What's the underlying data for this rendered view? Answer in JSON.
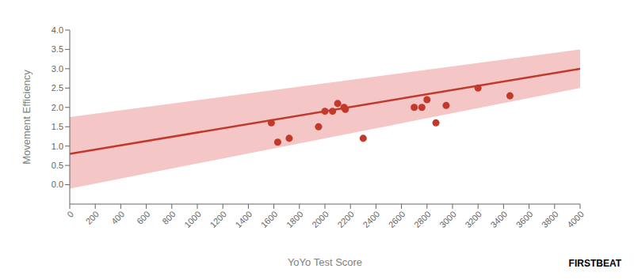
{
  "chart_data": {
    "type": "scatter",
    "xlabel": "YoYo Test Score",
    "ylabel": "Movement Efficiency",
    "annotations": [
      "FIRSTBEAT"
    ],
    "series": [
      {
        "type": "area",
        "color": "#f5c6c6",
        "x": [
          0,
          4000
        ],
        "upper": [
          1.75,
          3.5
        ],
        "lower": [
          -0.1,
          2.5
        ]
      },
      {
        "type": "line",
        "color": "#c0392b",
        "x": [
          0,
          4000
        ],
        "values": [
          0.8,
          3.0
        ]
      },
      {
        "type": "scatter",
        "color": "#c0392b",
        "x": [
          1580,
          1630,
          1720,
          1950,
          2000,
          2060,
          2100,
          2150,
          2160,
          2300,
          2700,
          2760,
          2800,
          2870,
          2950,
          3200,
          3450
        ],
        "values": [
          1.6,
          1.1,
          1.2,
          1.5,
          1.9,
          1.9,
          2.1,
          2.0,
          1.95,
          1.2,
          2.0,
          2.0,
          2.2,
          1.6,
          2.05,
          2.5,
          2.3
        ]
      }
    ],
    "xlim": [
      0,
      4000
    ],
    "ylim": [
      -0.5,
      4.0
    ],
    "xticks": [
      0,
      200,
      400,
      600,
      800,
      1000,
      1200,
      1400,
      1600,
      1800,
      2000,
      2200,
      2400,
      2600,
      2800,
      3000,
      3200,
      3400,
      3600,
      3800,
      4000
    ],
    "yticks": [
      {
        "value": 0,
        "label": "0.0"
      },
      {
        "value": 0.5,
        "label": "0.5"
      },
      {
        "value": 1.0,
        "label": "1.0"
      },
      {
        "value": 1.5,
        "label": "1.5"
      },
      {
        "value": 2.0,
        "label": "2.0"
      },
      {
        "value": 2.5,
        "label": "2.5"
      },
      {
        "value": 3.0,
        "label": "3.0"
      },
      {
        "value": 3.5,
        "label": "3.5"
      },
      {
        "value": 4.0,
        "label": "4.0"
      }
    ],
    "grid": false
  }
}
